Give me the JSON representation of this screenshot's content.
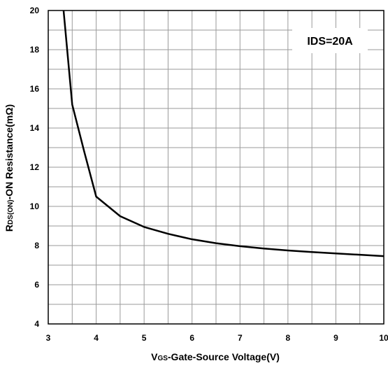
{
  "chart_data": {
    "type": "line",
    "title": "",
    "xlabel": {
      "main": "V",
      "sub": "GS",
      "rest": "-Gate-Source Voltage(V)"
    },
    "ylabel": {
      "main": "R",
      "sub": "DS(ON)",
      "rest": "-ON Resistance(mΩ)"
    },
    "xlim": [
      3,
      10
    ],
    "ylim": [
      4,
      20
    ],
    "x_ticks": [
      "3",
      "4",
      "5",
      "6",
      "7",
      "8",
      "9",
      "10"
    ],
    "y_ticks": [
      "4",
      "6",
      "8",
      "10",
      "12",
      "14",
      "16",
      "18",
      "20"
    ],
    "x_tick_values": [
      3,
      4,
      5,
      6,
      7,
      8,
      9,
      10
    ],
    "y_tick_values": [
      4,
      6,
      8,
      10,
      12,
      14,
      16,
      18,
      20
    ],
    "x_minor_step": 0.5,
    "y_minor_step": 1,
    "grid": true,
    "annotation": "IDS=20A",
    "series": [
      {
        "x": [
          3.32,
          3.5,
          3.75,
          4.0,
          4.5,
          5.0,
          5.5,
          6.0,
          6.5,
          7.0,
          7.5,
          8.0,
          8.5,
          9.0,
          9.5,
          10.0
        ],
        "y": [
          20.0,
          15.2,
          12.8,
          10.5,
          9.5,
          8.95,
          8.6,
          8.32,
          8.12,
          7.97,
          7.85,
          7.75,
          7.67,
          7.6,
          7.53,
          7.46
        ]
      }
    ]
  }
}
